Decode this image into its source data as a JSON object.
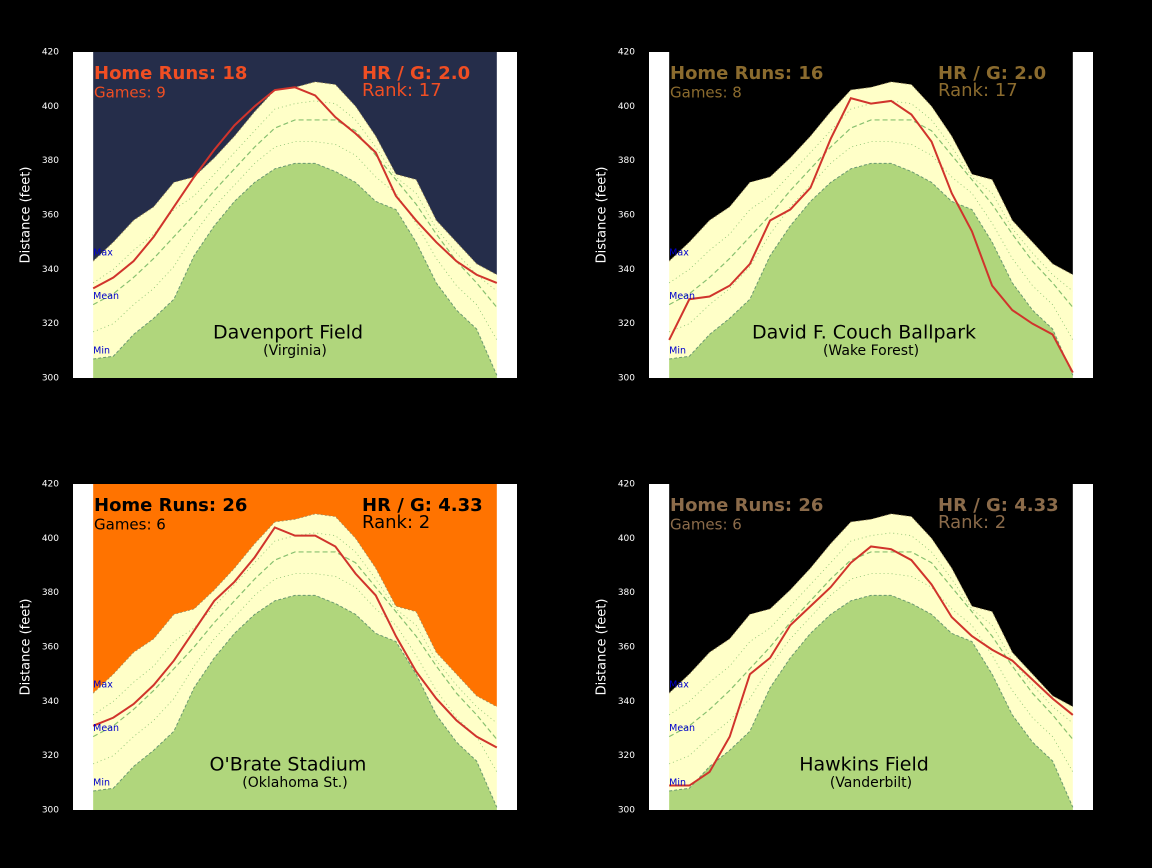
{
  "axis": {
    "y_label": "Distance (feet)",
    "ylim": [
      300,
      420
    ],
    "yticks": [
      300,
      320,
      340,
      360,
      380,
      400,
      420
    ],
    "xlim": [
      -1,
      21
    ]
  },
  "envelope": {
    "labels": [
      "Max",
      "Mean",
      "Min"
    ],
    "x": [
      0,
      1,
      2,
      3,
      4,
      5,
      6,
      7,
      8,
      9,
      10,
      11,
      12,
      13,
      14,
      15,
      16,
      17,
      18,
      19,
      20
    ],
    "max": [
      343,
      350,
      358,
      363,
      372,
      374,
      381,
      389,
      398,
      406,
      407,
      409,
      408,
      400,
      389,
      375,
      373,
      358,
      350,
      342,
      338
    ],
    "upper": [
      335,
      340,
      347,
      353,
      362,
      367,
      375,
      383,
      391,
      399,
      401,
      402,
      401,
      395,
      385,
      374,
      368,
      355,
      346,
      338,
      332
    ],
    "mean": [
      327,
      331,
      337,
      344,
      352,
      360,
      369,
      377,
      385,
      392,
      395,
      395,
      395,
      391,
      382,
      373,
      364,
      353,
      343,
      335,
      326
    ],
    "lower": [
      317,
      320,
      327,
      333,
      341,
      353,
      363,
      371,
      379,
      385,
      387,
      387,
      386,
      382,
      374,
      368,
      357,
      344,
      334,
      327,
      314
    ],
    "min": [
      307,
      308,
      316,
      322,
      329,
      345,
      356,
      365,
      372,
      377,
      379,
      379,
      376,
      372,
      365,
      362,
      350,
      335,
      325,
      318,
      301
    ],
    "fill_color": "#ffffc8",
    "min_color": "#b0d67c",
    "mean_color": "#88c070",
    "line_color": "#d0342c",
    "label_color": "#0000cc"
  },
  "chart_data": [
    {
      "type": "line",
      "title": "Davenport Field",
      "subtitle": "(Virginia)",
      "home_runs": "Home Runs: 18",
      "games": "Games: 9",
      "hr_per_game": "HR / G: 2.0",
      "rank": "Rank: 17",
      "background": "#252d4a",
      "text_color": "#f04e23",
      "values": [
        333,
        337,
        343,
        352,
        363,
        374,
        384,
        393,
        400,
        406,
        407,
        404,
        396,
        390,
        383,
        367,
        358,
        350,
        343,
        338,
        335
      ]
    },
    {
      "type": "line",
      "title": "David F. Couch Ballpark",
      "subtitle": "(Wake Forest)",
      "home_runs": "Home Runs: 16",
      "games": "Games: 8",
      "hr_per_game": "HR / G: 2.0",
      "rank": "Rank: 17",
      "background": "#000000",
      "text_color": "#8b6b2e",
      "values": [
        314,
        329,
        330,
        334,
        342,
        358,
        362,
        370,
        388,
        403,
        401,
        402,
        397,
        387,
        368,
        354,
        334,
        325,
        320,
        316,
        302
      ]
    },
    {
      "type": "line",
      "title": "O'Brate Stadium",
      "subtitle": "(Oklahoma St.)",
      "home_runs": "Home Runs: 26",
      "games": "Games: 6",
      "hr_per_game": "HR / G: 4.33",
      "rank": "Rank: 2",
      "background": "#ff7300",
      "text_color": "#000000",
      "values": [
        331,
        334,
        339,
        346,
        355,
        366,
        377,
        384,
        393,
        404,
        401,
        401,
        397,
        387,
        379,
        364,
        351,
        341,
        333,
        327,
        323
      ]
    },
    {
      "type": "line",
      "title": "Hawkins Field",
      "subtitle": "(Vanderbilt)",
      "home_runs": "Home Runs: 26",
      "games": "Games: 6",
      "hr_per_game": "HR / G: 4.33",
      "rank": "Rank: 2",
      "background": "#000000",
      "text_color": "#8b6b4a",
      "values": [
        309,
        309,
        314,
        327,
        350,
        356,
        368,
        375,
        382,
        391,
        397,
        396,
        392,
        383,
        371,
        364,
        359,
        355,
        348,
        341,
        335
      ]
    }
  ]
}
